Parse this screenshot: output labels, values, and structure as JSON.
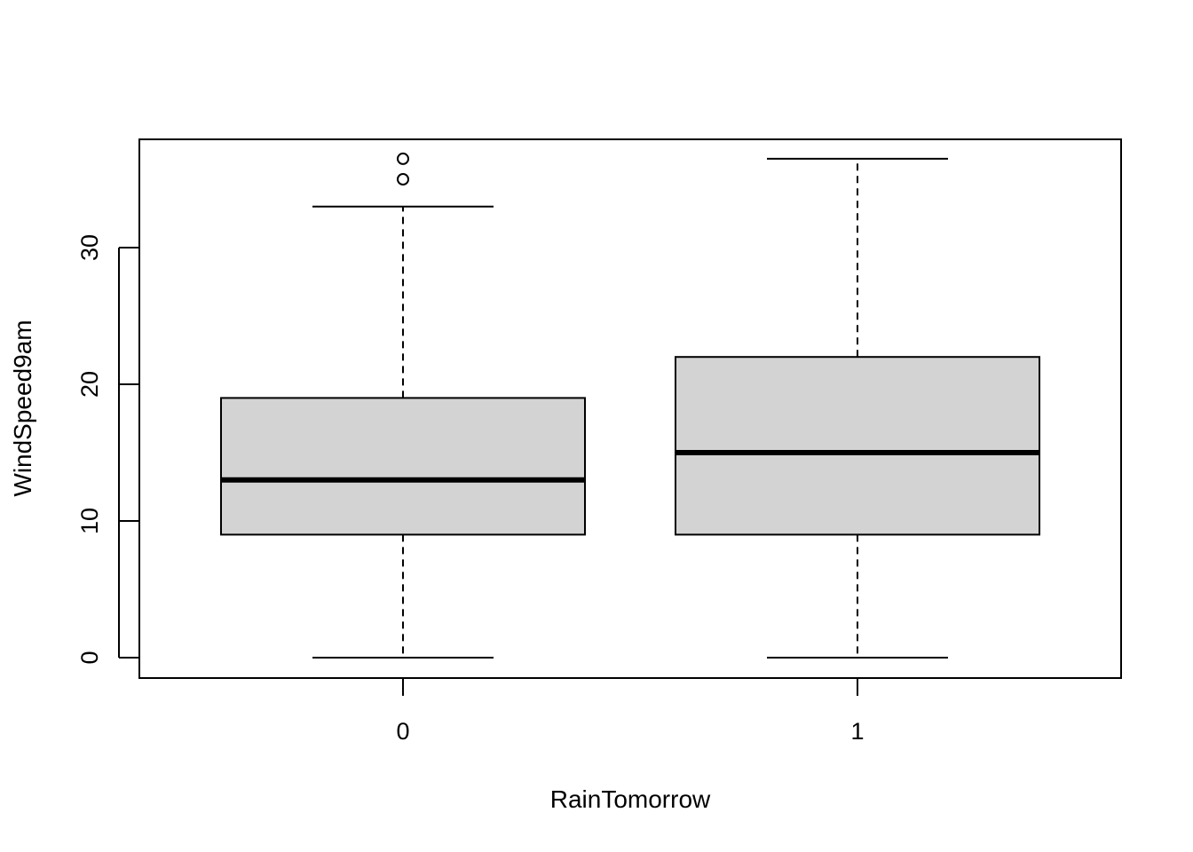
{
  "chart_data": {
    "type": "boxplot",
    "xlabel": "RainTomorrow",
    "ylabel": "WindSpeed9am",
    "ylim": [
      -1.5,
      37.9
    ],
    "yticks": [
      0,
      10,
      20,
      30
    ],
    "grid": false,
    "box_fill": "#d3d3d3",
    "line_color": "#000000",
    "categories": [
      "0",
      "1"
    ],
    "boxes": [
      {
        "category": "0",
        "whisker_low": 0,
        "q1": 9,
        "median": 13,
        "q3": 19,
        "whisker_high": 33,
        "outliers": [
          35,
          36.5
        ]
      },
      {
        "category": "1",
        "whisker_low": 0,
        "q1": 9,
        "median": 15,
        "q3": 22,
        "whisker_high": 36.5,
        "outliers": []
      }
    ]
  }
}
